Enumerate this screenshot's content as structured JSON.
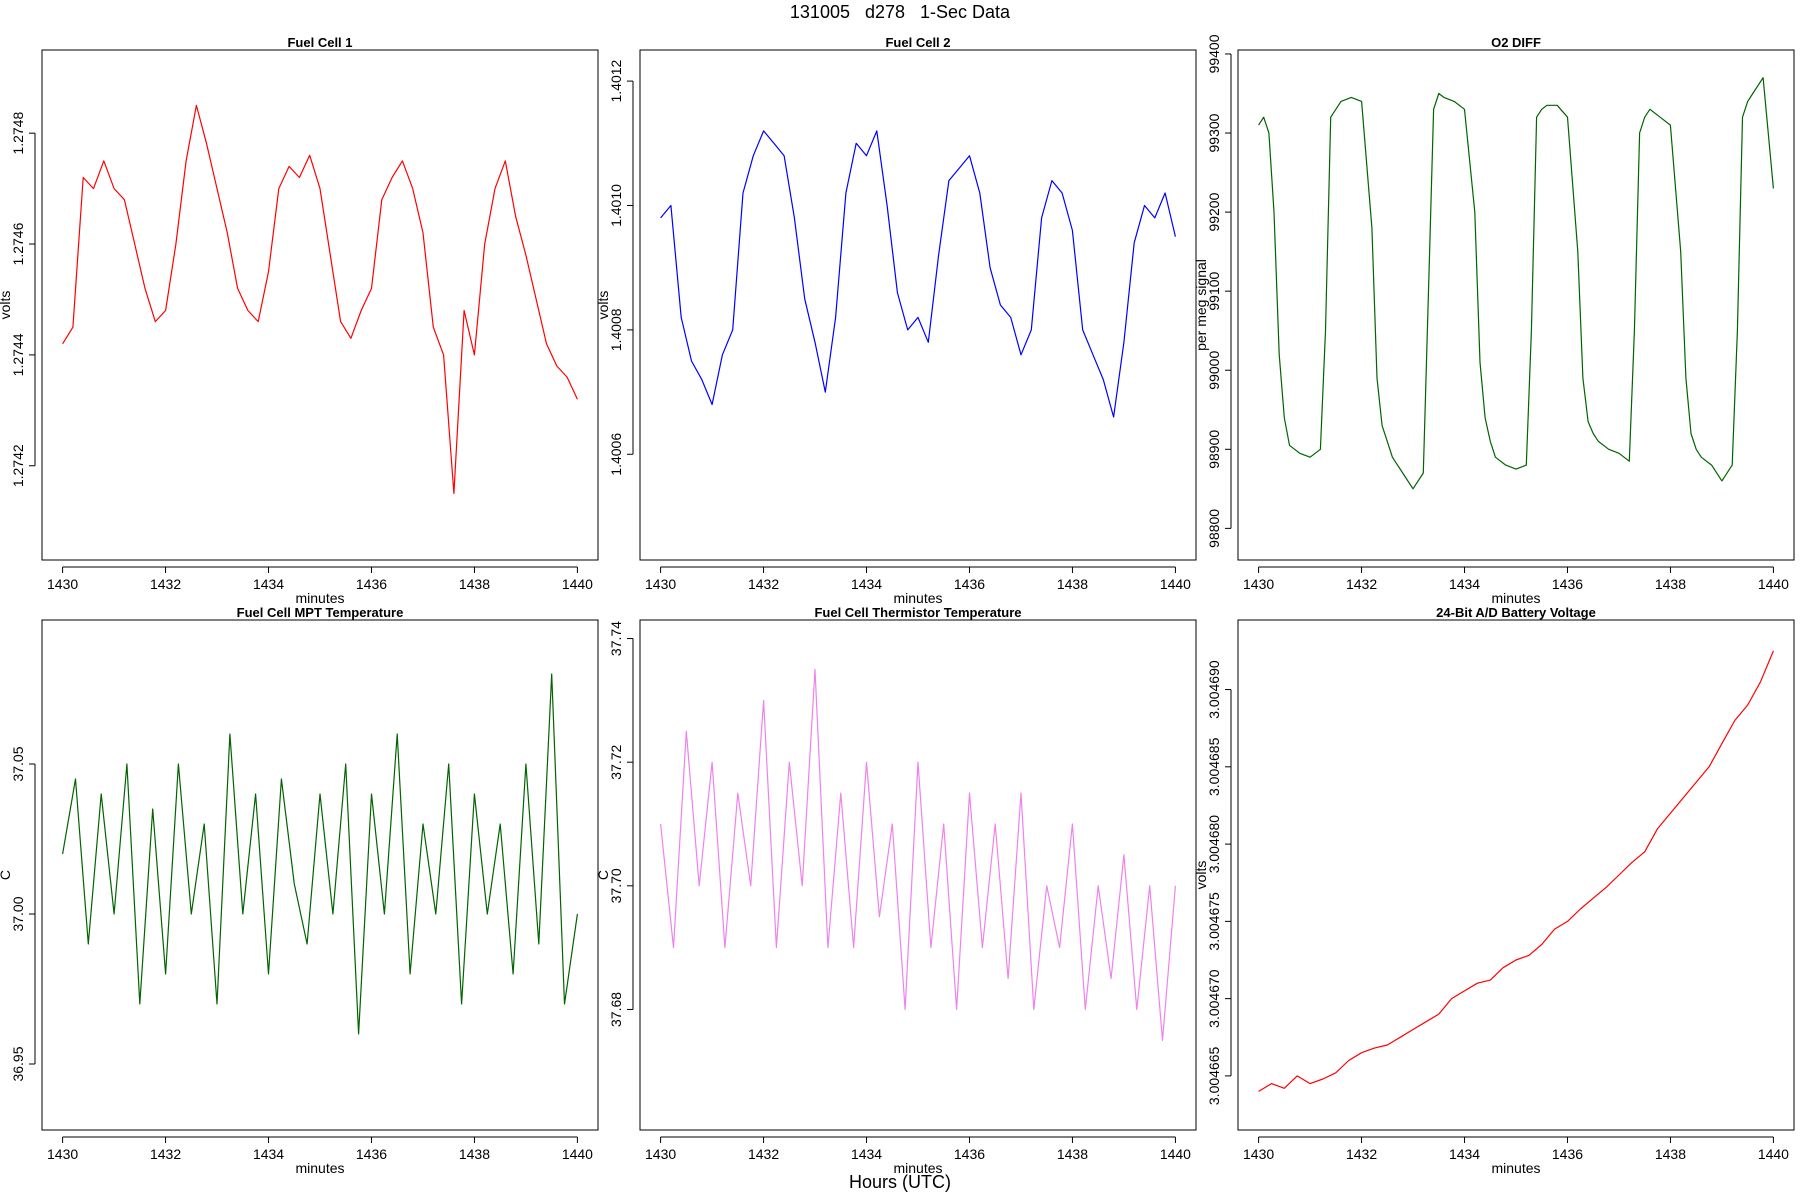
{
  "figure": {
    "title": "131005   d278   1-Sec Data",
    "footer_label": "Hours (UTC)"
  },
  "chart_data": [
    {
      "type": "line",
      "title": "Fuel Cell 1",
      "xlabel": "minutes",
      "ylabel": "volts",
      "color": "#ff0000",
      "x_ticks": [
        "1430",
        "1432",
        "1434",
        "1436",
        "1438",
        "1440"
      ],
      "x_tick_values": [
        1430,
        1432,
        1434,
        1436,
        1438,
        1440
      ],
      "xlim": [
        1429.6,
        1440.4
      ],
      "y_ticks": [
        "1.2742",
        "1.2744",
        "1.2746",
        "1.2748"
      ],
      "y_tick_values": [
        1.2742,
        1.2744,
        1.2746,
        1.2748
      ],
      "ylim": [
        1.27403,
        1.27495
      ],
      "series": [
        {
          "x": [
            1430,
            1430.2,
            1430.4,
            1430.6,
            1430.8,
            1431,
            1431.2,
            1431.4,
            1431.6,
            1431.8,
            1432,
            1432.2,
            1432.4,
            1432.6,
            1432.8,
            1433,
            1433.2,
            1433.4,
            1433.6,
            1433.8,
            1434,
            1434.2,
            1434.4,
            1434.6,
            1434.8,
            1435,
            1435.2,
            1435.4,
            1435.6,
            1435.8,
            1436,
            1436.2,
            1436.4,
            1436.6,
            1436.8,
            1437,
            1437.2,
            1437.4,
            1437.6,
            1437.8,
            1438,
            1438.2,
            1438.4,
            1438.6,
            1438.8,
            1439,
            1439.2,
            1439.4,
            1439.6,
            1439.8,
            1440
          ],
          "y": [
            1.27442,
            1.27445,
            1.27472,
            1.2747,
            1.27475,
            1.2747,
            1.27468,
            1.2746,
            1.27452,
            1.27446,
            1.27448,
            1.2746,
            1.27475,
            1.27485,
            1.27478,
            1.2747,
            1.27462,
            1.27452,
            1.27448,
            1.27446,
            1.27455,
            1.2747,
            1.27474,
            1.27472,
            1.27476,
            1.2747,
            1.27458,
            1.27446,
            1.27443,
            1.27448,
            1.27452,
            1.27468,
            1.27472,
            1.27475,
            1.2747,
            1.27462,
            1.27445,
            1.2744,
            1.27415,
            1.27448,
            1.2744,
            1.2746,
            1.2747,
            1.27475,
            1.27465,
            1.27458,
            1.2745,
            1.27442,
            1.27438,
            1.27436,
            1.27432
          ]
        }
      ]
    },
    {
      "type": "line",
      "title": "Fuel Cell 2",
      "xlabel": "minutes",
      "ylabel": "volts",
      "color": "#0000ff",
      "x_ticks": [
        "1430",
        "1432",
        "1434",
        "1436",
        "1438",
        "1440"
      ],
      "x_tick_values": [
        1430,
        1432,
        1434,
        1436,
        1438,
        1440
      ],
      "xlim": [
        1429.6,
        1440.4
      ],
      "y_ticks": [
        "1.4006",
        "1.4008",
        "1.4010",
        "1.4012"
      ],
      "y_tick_values": [
        1.4006,
        1.4008,
        1.401,
        1.4012
      ],
      "ylim": [
        1.40043,
        1.40125
      ],
      "series": [
        {
          "x": [
            1430,
            1430.2,
            1430.4,
            1430.6,
            1430.8,
            1431,
            1431.2,
            1431.4,
            1431.6,
            1431.8,
            1432,
            1432.2,
            1432.4,
            1432.6,
            1432.8,
            1433,
            1433.2,
            1433.4,
            1433.6,
            1433.8,
            1434,
            1434.2,
            1434.4,
            1434.6,
            1434.8,
            1435,
            1435.2,
            1435.4,
            1435.6,
            1435.8,
            1436,
            1436.2,
            1436.4,
            1436.6,
            1436.8,
            1437,
            1437.2,
            1437.4,
            1437.6,
            1437.8,
            1438,
            1438.2,
            1438.4,
            1438.6,
            1438.8,
            1439,
            1439.2,
            1439.4,
            1439.6,
            1439.8,
            1440
          ],
          "y": [
            1.40098,
            1.401,
            1.40082,
            1.40075,
            1.40072,
            1.40068,
            1.40076,
            1.4008,
            1.40102,
            1.40108,
            1.40112,
            1.4011,
            1.40108,
            1.40098,
            1.40085,
            1.40078,
            1.4007,
            1.40082,
            1.40102,
            1.4011,
            1.40108,
            1.40112,
            1.401,
            1.40086,
            1.4008,
            1.40082,
            1.40078,
            1.40092,
            1.40104,
            1.40106,
            1.40108,
            1.40102,
            1.4009,
            1.40084,
            1.40082,
            1.40076,
            1.4008,
            1.40098,
            1.40104,
            1.40102,
            1.40096,
            1.4008,
            1.40076,
            1.40072,
            1.40066,
            1.40078,
            1.40094,
            1.401,
            1.40098,
            1.40102,
            1.40095
          ]
        }
      ]
    },
    {
      "type": "line",
      "title": "O2 DIFF",
      "xlabel": "minutes",
      "ylabel": "per meg signal",
      "color": "#006400",
      "x_ticks": [
        "1430",
        "1432",
        "1434",
        "1436",
        "1438",
        "1440"
      ],
      "x_tick_values": [
        1430,
        1432,
        1434,
        1436,
        1438,
        1440
      ],
      "xlim": [
        1429.6,
        1440.4
      ],
      "y_ticks": [
        "98800",
        "98900",
        "99000",
        "99100",
        "99200",
        "99300",
        "99400"
      ],
      "y_tick_values": [
        98800,
        98900,
        99000,
        99100,
        99200,
        99300,
        99400
      ],
      "ylim": [
        98760,
        99405
      ],
      "series": [
        {
          "x": [
            1430,
            1430.1,
            1430.2,
            1430.3,
            1430.4,
            1430.5,
            1430.6,
            1430.8,
            1431,
            1431.2,
            1431.3,
            1431.4,
            1431.6,
            1431.8,
            1432,
            1432.2,
            1432.3,
            1432.4,
            1432.5,
            1432.6,
            1432.8,
            1433,
            1433.2,
            1433.3,
            1433.4,
            1433.5,
            1433.6,
            1433.8,
            1434,
            1434.2,
            1434.3,
            1434.4,
            1434.5,
            1434.6,
            1434.8,
            1435,
            1435.2,
            1435.3,
            1435.4,
            1435.5,
            1435.6,
            1435.8,
            1436,
            1436.2,
            1436.3,
            1436.4,
            1436.5,
            1436.6,
            1436.8,
            1437,
            1437.2,
            1437.3,
            1437.4,
            1437.5,
            1437.6,
            1437.8,
            1438,
            1438.2,
            1438.3,
            1438.4,
            1438.5,
            1438.6,
            1438.8,
            1439,
            1439.2,
            1439.3,
            1439.4,
            1439.5,
            1439.6,
            1439.8,
            1440
          ],
          "y": [
            99310,
            99320,
            99300,
            99200,
            99020,
            98940,
            98905,
            98895,
            98890,
            98900,
            99050,
            99320,
            99340,
            99345,
            99340,
            99180,
            98990,
            98930,
            98910,
            98890,
            98870,
            98850,
            98870,
            99100,
            99330,
            99350,
            99345,
            99340,
            99330,
            99200,
            99010,
            98940,
            98910,
            98890,
            98880,
            98875,
            98880,
            99050,
            99320,
            99330,
            99335,
            99335,
            99320,
            99150,
            98990,
            98935,
            98920,
            98910,
            98900,
            98895,
            98885,
            99050,
            99300,
            99320,
            99330,
            99320,
            99310,
            99150,
            98990,
            98920,
            98900,
            98890,
            98880,
            98860,
            98880,
            99050,
            99320,
            99340,
            99350,
            99370,
            99230
          ]
        }
      ]
    },
    {
      "type": "line",
      "title": "Fuel Cell MPT Temperature",
      "xlabel": "minutes",
      "ylabel": "C",
      "color": "#006400",
      "x_ticks": [
        "1430",
        "1432",
        "1434",
        "1436",
        "1438",
        "1440"
      ],
      "x_tick_values": [
        1430,
        1432,
        1434,
        1436,
        1438,
        1440
      ],
      "xlim": [
        1429.6,
        1440.4
      ],
      "y_ticks": [
        "36.95",
        "37.00",
        "37.05"
      ],
      "y_tick_values": [
        36.95,
        37.0,
        37.05
      ],
      "ylim": [
        36.928,
        37.098
      ],
      "series": [
        {
          "x": [
            1430,
            1430.25,
            1430.5,
            1430.75,
            1431,
            1431.25,
            1431.5,
            1431.75,
            1432,
            1432.25,
            1432.5,
            1432.75,
            1433,
            1433.25,
            1433.5,
            1433.75,
            1434,
            1434.25,
            1434.5,
            1434.75,
            1435,
            1435.25,
            1435.5,
            1435.75,
            1436,
            1436.25,
            1436.5,
            1436.75,
            1437,
            1437.25,
            1437.5,
            1437.75,
            1438,
            1438.25,
            1438.5,
            1438.75,
            1439,
            1439.25,
            1439.5,
            1439.75,
            1440
          ],
          "y": [
            37.02,
            37.045,
            36.99,
            37.04,
            37.0,
            37.05,
            36.97,
            37.035,
            36.98,
            37.05,
            37.0,
            37.03,
            36.97,
            37.06,
            37.0,
            37.04,
            36.98,
            37.045,
            37.01,
            36.99,
            37.04,
            37.0,
            37.05,
            36.96,
            37.04,
            37.0,
            37.06,
            36.98,
            37.03,
            37.0,
            37.05,
            36.97,
            37.04,
            37.0,
            37.03,
            36.98,
            37.05,
            36.99,
            37.08,
            36.97,
            37.0
          ]
        }
      ]
    },
    {
      "type": "line",
      "title": "Fuel Cell Thermistor Temperature",
      "xlabel": "minutes",
      "ylabel": "C",
      "color": "#ee82ee",
      "x_ticks": [
        "1430",
        "1432",
        "1434",
        "1436",
        "1438",
        "1440"
      ],
      "x_tick_values": [
        1430,
        1432,
        1434,
        1436,
        1438,
        1440
      ],
      "xlim": [
        1429.6,
        1440.4
      ],
      "y_ticks": [
        "37.68",
        "37.70",
        "37.72",
        "37.74"
      ],
      "y_tick_values": [
        37.68,
        37.7,
        37.72,
        37.74
      ],
      "ylim": [
        37.6605,
        37.743
      ],
      "series": [
        {
          "x": [
            1430,
            1430.25,
            1430.5,
            1430.75,
            1431,
            1431.25,
            1431.5,
            1431.75,
            1432,
            1432.25,
            1432.5,
            1432.75,
            1433,
            1433.25,
            1433.5,
            1433.75,
            1434,
            1434.25,
            1434.5,
            1434.75,
            1435,
            1435.25,
            1435.5,
            1435.75,
            1436,
            1436.25,
            1436.5,
            1436.75,
            1437,
            1437.25,
            1437.5,
            1437.75,
            1438,
            1438.25,
            1438.5,
            1438.75,
            1439,
            1439.25,
            1439.5,
            1439.75,
            1440
          ],
          "y": [
            37.71,
            37.69,
            37.725,
            37.7,
            37.72,
            37.69,
            37.715,
            37.7,
            37.73,
            37.69,
            37.72,
            37.7,
            37.735,
            37.69,
            37.715,
            37.69,
            37.72,
            37.695,
            37.71,
            37.68,
            37.72,
            37.69,
            37.71,
            37.68,
            37.715,
            37.69,
            37.71,
            37.685,
            37.715,
            37.68,
            37.7,
            37.69,
            37.71,
            37.68,
            37.7,
            37.685,
            37.705,
            37.68,
            37.7,
            37.675,
            37.7
          ]
        }
      ]
    },
    {
      "type": "line",
      "title": "24-Bit A/D Battery Voltage",
      "xlabel": "minutes",
      "ylabel": "volts",
      "color": "#ff0000",
      "x_ticks": [
        "1430",
        "1432",
        "1434",
        "1436",
        "1438",
        "1440"
      ],
      "x_tick_values": [
        1430,
        1432,
        1434,
        1436,
        1438,
        1440
      ],
      "xlim": [
        1429.6,
        1440.4
      ],
      "y_ticks": [
        "3.004665",
        "3.004670",
        "3.004675",
        "3.004680",
        "3.004685",
        "3.004690"
      ],
      "y_tick_values": [
        3.004665,
        3.00467,
        3.004675,
        3.00468,
        3.004685,
        3.00469
      ],
      "ylim": [
        3.0046615,
        3.0046945
      ],
      "series": [
        {
          "x": [
            1430,
            1430.25,
            1430.5,
            1430.75,
            1431,
            1431.25,
            1431.5,
            1431.75,
            1432,
            1432.25,
            1432.5,
            1432.75,
            1433,
            1433.25,
            1433.5,
            1433.75,
            1434,
            1434.25,
            1434.5,
            1434.75,
            1435,
            1435.25,
            1435.5,
            1435.75,
            1436,
            1436.25,
            1436.5,
            1436.75,
            1437,
            1437.25,
            1437.5,
            1437.75,
            1438,
            1438.25,
            1438.5,
            1438.75,
            1439,
            1439.25,
            1439.5,
            1439.75,
            1440
          ],
          "y": [
            3.004664,
            3.0046645,
            3.0046642,
            3.004665,
            3.0046645,
            3.0046648,
            3.0046652,
            3.004666,
            3.0046665,
            3.0046668,
            3.004667,
            3.0046675,
            3.004668,
            3.0046685,
            3.004669,
            3.00467,
            3.0046705,
            3.004671,
            3.0046712,
            3.004672,
            3.0046725,
            3.0046728,
            3.0046735,
            3.0046745,
            3.004675,
            3.0046758,
            3.0046765,
            3.0046772,
            3.004678,
            3.0046788,
            3.0046795,
            3.004681,
            3.004682,
            3.004683,
            3.004684,
            3.004685,
            3.0046865,
            3.004688,
            3.004689,
            3.0046905,
            3.0046925
          ]
        }
      ]
    }
  ]
}
